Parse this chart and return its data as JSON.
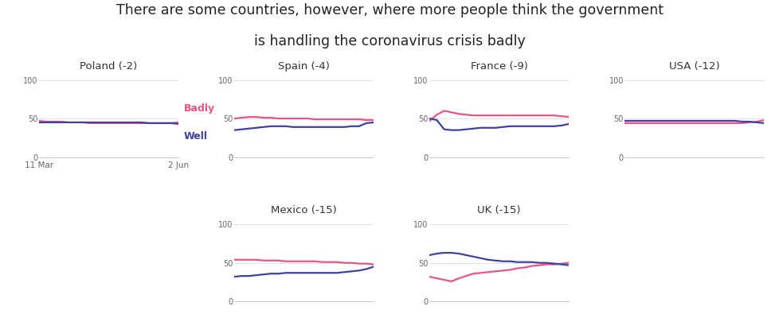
{
  "title_line1": "There are some countries, however, where more people think the government",
  "title_line2": "is handling the coronavirus crisis badly",
  "title_fontsize": 12.5,
  "badly_color": "#e8538a",
  "well_color": "#4040a0",
  "background_color": "#ffffff",
  "subplots": [
    {
      "title": "Poland (-2)",
      "badly": [
        47,
        46,
        46,
        46,
        45,
        45,
        45,
        44,
        44,
        44,
        44,
        44,
        44,
        44,
        44,
        44,
        44,
        44,
        44,
        45
      ],
      "well": [
        45,
        45,
        45,
        45,
        45,
        45,
        45,
        45,
        45,
        45,
        45,
        45,
        45,
        45,
        45,
        44,
        44,
        44,
        44,
        43
      ],
      "show_legend": true,
      "show_xticks": true
    },
    {
      "title": "Spain (-4)",
      "badly": [
        50,
        51,
        52,
        52,
        51,
        51,
        50,
        50,
        50,
        50,
        50,
        49,
        49,
        49,
        49,
        49,
        49,
        49,
        48,
        48
      ],
      "well": [
        35,
        36,
        37,
        38,
        39,
        40,
        40,
        40,
        39,
        39,
        39,
        39,
        39,
        39,
        39,
        39,
        40,
        40,
        44,
        45
      ],
      "show_legend": false,
      "show_xticks": false
    },
    {
      "title": "France (-9)",
      "badly": [
        47,
        55,
        60,
        58,
        56,
        55,
        54,
        54,
        54,
        54,
        54,
        54,
        54,
        54,
        54,
        54,
        54,
        54,
        53,
        52
      ],
      "well": [
        50,
        48,
        36,
        35,
        35,
        36,
        37,
        38,
        38,
        38,
        39,
        40,
        40,
        40,
        40,
        40,
        40,
        40,
        41,
        43
      ],
      "show_legend": false,
      "show_xticks": false
    },
    {
      "title": "USA (-12)",
      "badly": [
        44,
        44,
        44,
        44,
        44,
        44,
        44,
        44,
        44,
        44,
        44,
        44,
        44,
        44,
        44,
        44,
        44,
        45,
        46,
        48
      ],
      "well": [
        47,
        47,
        47,
        47,
        47,
        47,
        47,
        47,
        47,
        47,
        47,
        47,
        47,
        47,
        47,
        47,
        46,
        46,
        45,
        44
      ],
      "show_legend": false,
      "show_xticks": false
    },
    {
      "title": "Mexico (-15)",
      "badly": [
        54,
        54,
        54,
        54,
        53,
        53,
        53,
        52,
        52,
        52,
        52,
        52,
        51,
        51,
        51,
        50,
        50,
        49,
        49,
        48
      ],
      "well": [
        32,
        33,
        33,
        34,
        35,
        36,
        36,
        37,
        37,
        37,
        37,
        37,
        37,
        37,
        37,
        38,
        39,
        40,
        42,
        45
      ],
      "show_legend": false,
      "show_xticks": false
    },
    {
      "title": "UK (-15)",
      "badly": [
        32,
        30,
        28,
        26,
        30,
        33,
        36,
        37,
        38,
        39,
        40,
        41,
        43,
        44,
        46,
        47,
        48,
        48,
        49,
        50
      ],
      "well": [
        60,
        62,
        63,
        63,
        62,
        60,
        58,
        56,
        54,
        53,
        52,
        52,
        51,
        51,
        51,
        50,
        50,
        49,
        48,
        47
      ],
      "show_legend": false,
      "show_xticks": false
    }
  ],
  "xtick_labels": [
    "11 Mar",
    "2 Jun"
  ],
  "ylim": [
    0,
    110
  ],
  "yticks": [
    0,
    50,
    100
  ]
}
